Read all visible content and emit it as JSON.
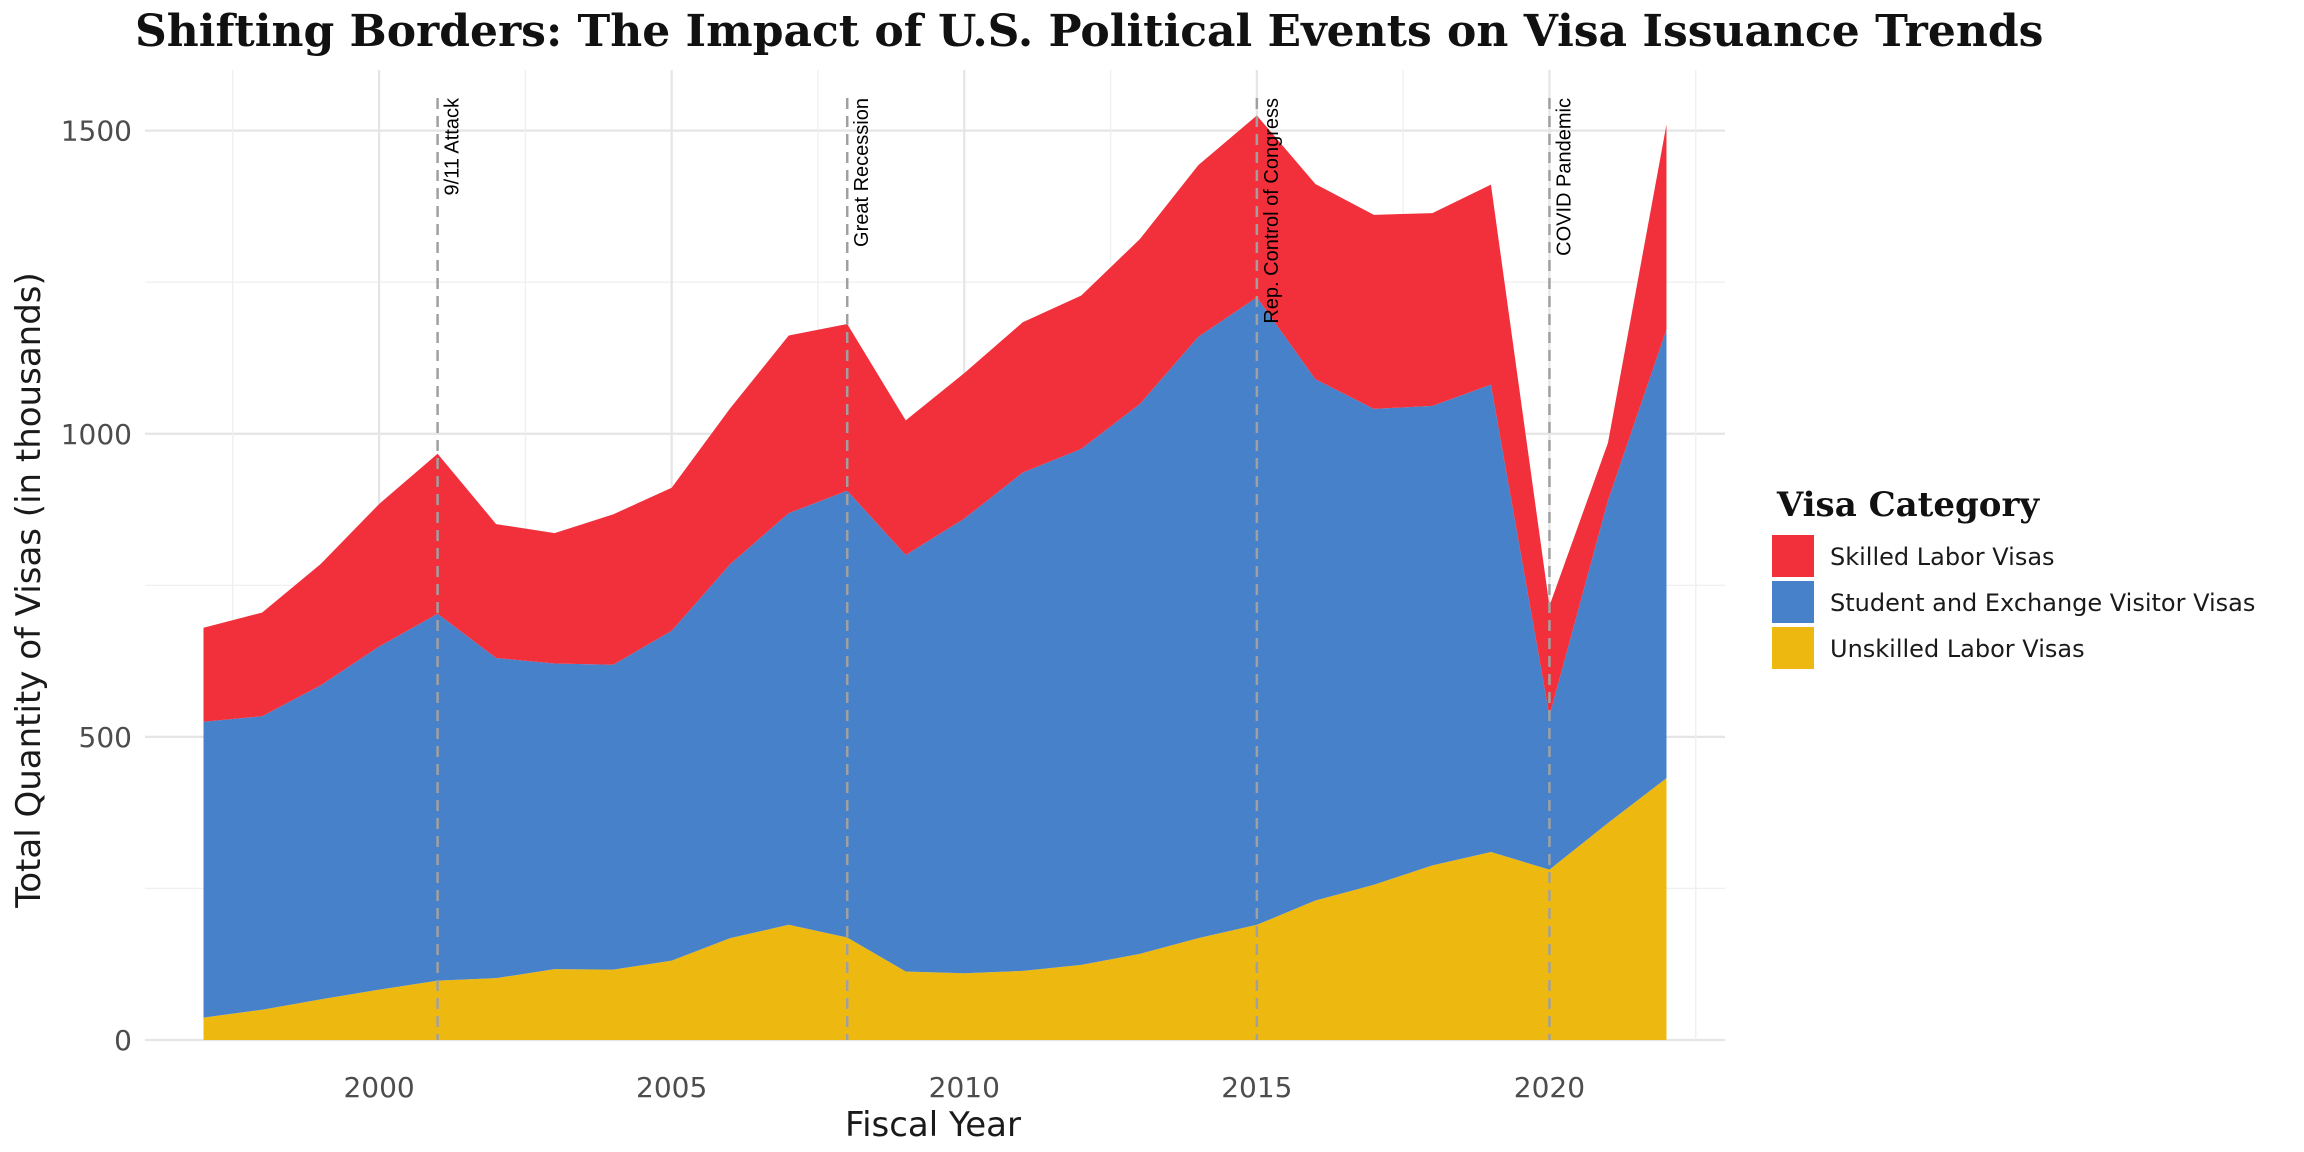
{
  "chart_data": {
    "type": "area",
    "stacked": true,
    "title": "Shifting Borders: The Impact of U.S. Political Events on Visa Issuance Trends",
    "xlabel": "Fiscal Year",
    "ylabel": "Total Quantity of Visas (in thousands)",
    "xlim": [
      1996,
      2023
    ],
    "ylim": [
      0,
      1600
    ],
    "x_ticks": [
      2000,
      2005,
      2010,
      2015,
      2020
    ],
    "y_ticks": [
      0,
      500,
      1000,
      1500
    ],
    "grid": true,
    "legend": {
      "title": "Visa Category",
      "position": "right"
    },
    "x": [
      1997,
      1998,
      1999,
      2000,
      2001,
      2002,
      2003,
      2004,
      2005,
      2006,
      2007,
      2008,
      2009,
      2010,
      2011,
      2012,
      2013,
      2014,
      2015,
      2016,
      2017,
      2018,
      2019,
      2020,
      2021,
      2022
    ],
    "series": [
      {
        "name": "Unskilled Labor Visas",
        "color": "#EDB911",
        "values": [
          37,
          50,
          67,
          83,
          98,
          102,
          117,
          116,
          131,
          168,
          190,
          169,
          113,
          110,
          114,
          124,
          142,
          168,
          190,
          230,
          256,
          288,
          310,
          281,
          358,
          432
        ]
      },
      {
        "name": "Student and Exchange Visitor Visas",
        "color": "#4781CA",
        "values": [
          488,
          484,
          518,
          566,
          605,
          528,
          504,
          503,
          544,
          617,
          679,
          737,
          687,
          750,
          822,
          851,
          907,
          992,
          1035,
          860,
          785,
          758,
          771,
          254,
          532,
          740
        ]
      },
      {
        "name": "Skilled Labor Visas",
        "color": "#F2303B",
        "values": [
          155,
          171,
          200,
          235,
          264,
          221,
          215,
          248,
          236,
          257,
          293,
          275,
          222,
          240,
          248,
          253,
          272,
          283,
          300,
          322,
          320,
          318,
          330,
          181,
          95,
          338
        ]
      }
    ],
    "events": [
      {
        "x": 2001,
        "label": "9/11 Attack"
      },
      {
        "x": 2008,
        "label": "Great Recession"
      },
      {
        "x": 2015,
        "label": "Rep. Control of Congress"
      },
      {
        "x": 2020,
        "label": "COVID Pandemic"
      }
    ]
  }
}
